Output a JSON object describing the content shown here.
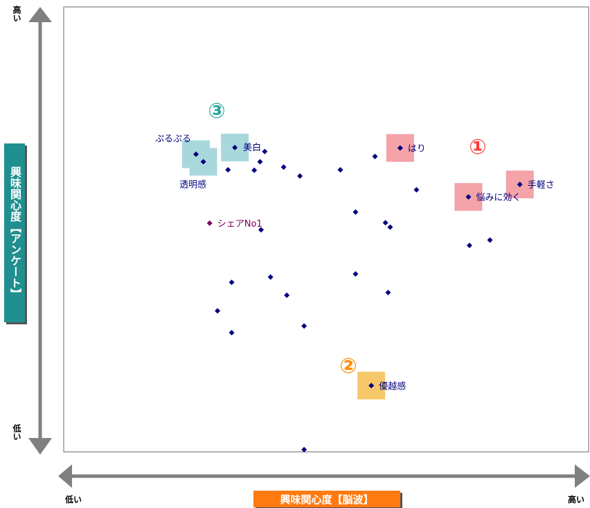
{
  "chart_data": {
    "type": "scatter",
    "xlabel": "興味関心度【脳波】",
    "ylabel": "興味関心度【アンケート】",
    "x_low_label": "低い",
    "x_high_label": "高い",
    "y_low_label": "低い",
    "y_high_label": "高い",
    "xlim": [
      0,
      100
    ],
    "ylim": [
      0,
      100
    ],
    "grid": false,
    "points": [
      {
        "x": 25.2,
        "y": 66.9,
        "label": "ぷるぷる"
      },
      {
        "x": 26.6,
        "y": 65.2,
        "label": "透明感"
      },
      {
        "x": 32.6,
        "y": 68.4,
        "label": "美白"
      },
      {
        "x": 31.3,
        "y": 63.4,
        "label": ""
      },
      {
        "x": 38.3,
        "y": 67.5,
        "label": ""
      },
      {
        "x": 37.4,
        "y": 65.2,
        "label": ""
      },
      {
        "x": 36.3,
        "y": 63.3,
        "label": ""
      },
      {
        "x": 41.9,
        "y": 64.0,
        "label": ""
      },
      {
        "x": 45.0,
        "y": 62.0,
        "label": ""
      },
      {
        "x": 52.7,
        "y": 63.4,
        "label": ""
      },
      {
        "x": 59.3,
        "y": 66.4,
        "label": ""
      },
      {
        "x": 64.1,
        "y": 68.3,
        "label": "はり"
      },
      {
        "x": 67.2,
        "y": 58.9,
        "label": ""
      },
      {
        "x": 77.1,
        "y": 57.3,
        "label": "悩みに効く"
      },
      {
        "x": 86.9,
        "y": 60.1,
        "label": "手軽さ"
      },
      {
        "x": 55.6,
        "y": 53.9,
        "label": ""
      },
      {
        "x": 61.3,
        "y": 51.5,
        "label": ""
      },
      {
        "x": 62.2,
        "y": 50.5,
        "label": ""
      },
      {
        "x": 77.3,
        "y": 46.4,
        "label": ""
      },
      {
        "x": 81.2,
        "y": 47.6,
        "label": ""
      },
      {
        "x": 27.8,
        "y": 51.4,
        "label": "シェアNo1"
      },
      {
        "x": 37.6,
        "y": 49.9,
        "label": ""
      },
      {
        "x": 55.6,
        "y": 40.0,
        "label": ""
      },
      {
        "x": 39.4,
        "y": 39.3,
        "label": ""
      },
      {
        "x": 32.0,
        "y": 38.1,
        "label": ""
      },
      {
        "x": 42.5,
        "y": 35.2,
        "label": ""
      },
      {
        "x": 61.8,
        "y": 35.8,
        "label": ""
      },
      {
        "x": 29.3,
        "y": 31.7,
        "label": ""
      },
      {
        "x": 45.8,
        "y": 28.3,
        "label": ""
      },
      {
        "x": 32.0,
        "y": 26.8,
        "label": ""
      },
      {
        "x": 58.6,
        "y": 14.9,
        "label": "優越感"
      },
      {
        "x": 45.8,
        "y": 0.5,
        "label": ""
      }
    ],
    "groups": [
      {
        "marker": "①",
        "color": "#ff3b3b",
        "highlight": "#f4a3a8",
        "members": [
          "はり",
          "悩みに効く",
          "手軽さ"
        ]
      },
      {
        "marker": "②",
        "color": "#ff8a00",
        "highlight": "#f7c86a",
        "members": [
          "優越感"
        ]
      },
      {
        "marker": "③",
        "color": "#2aa8a0",
        "highlight": "#a9d8dc",
        "members": [
          "ぷるぷる",
          "美白",
          "透明感"
        ]
      }
    ],
    "point_color": "#000080",
    "special_point_color": "#800060",
    "axis_color": "#808080"
  }
}
